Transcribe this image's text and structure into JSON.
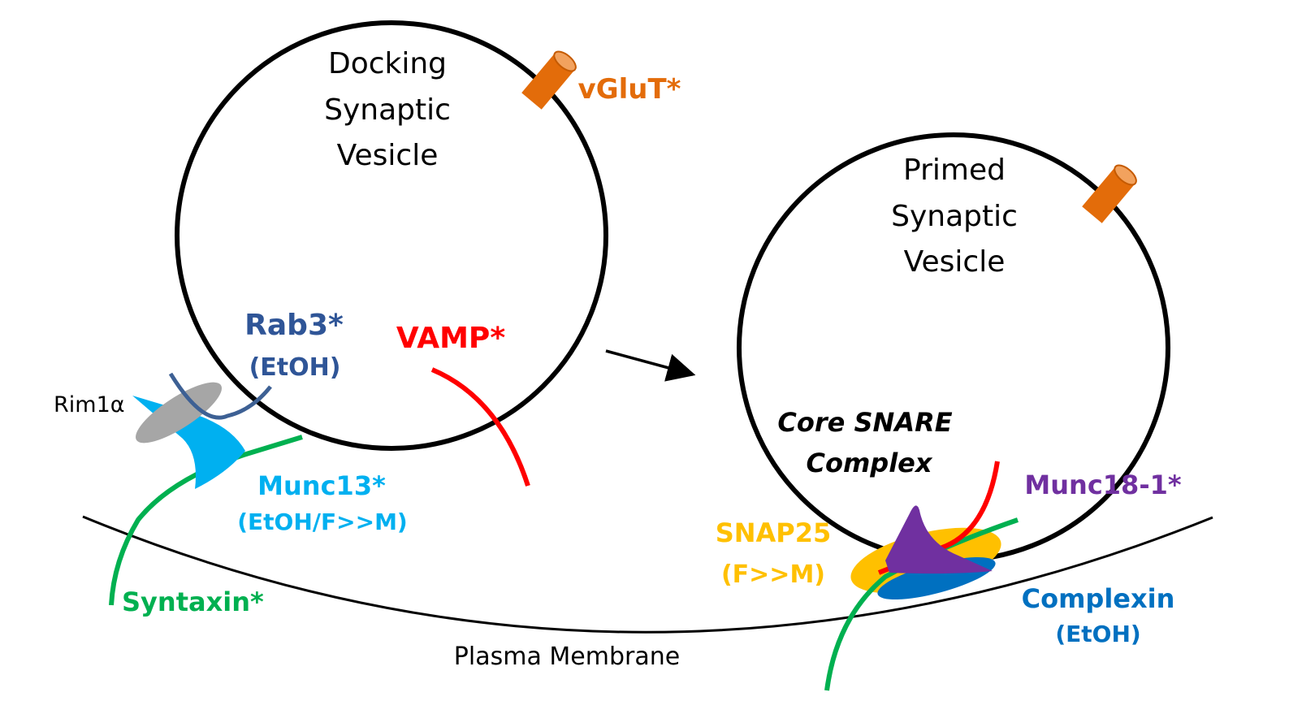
{
  "docking_vesicle": {
    "lines": [
      "Docking",
      "Synaptic",
      "Vesicle"
    ]
  },
  "primed_vesicle": {
    "lines": [
      "Primed",
      "Synaptic",
      "Vesicle"
    ]
  },
  "labels": {
    "vglut": "vGluT*",
    "rab3": "Rab3*",
    "rab3_note": "(EtOH)",
    "vamp": "VAMP*",
    "rim1a": "Rim1α",
    "munc13": "Munc13*",
    "munc13_note": "(EtOH/F>>M)",
    "syntaxin": "Syntaxin*",
    "plasma_membrane": "Plasma Membrane",
    "core_snare": [
      "Core SNARE",
      "Complex"
    ],
    "munc18": "Munc18-1*",
    "snap25": "SNAP25",
    "snap25_note": "(F>>M)",
    "complexin": "Complexin",
    "complexin_note": "(EtOH)"
  },
  "colors": {
    "vglut": "#e36c0a",
    "rab3": "#2f5597",
    "vamp": "#ff0000",
    "munc13": "#00b0f0",
    "syntaxin": "#00b050",
    "munc18": "#7030a0",
    "snap25": "#ffc000",
    "complexin": "#0070c0",
    "rim1a": "#a6a6a6"
  }
}
